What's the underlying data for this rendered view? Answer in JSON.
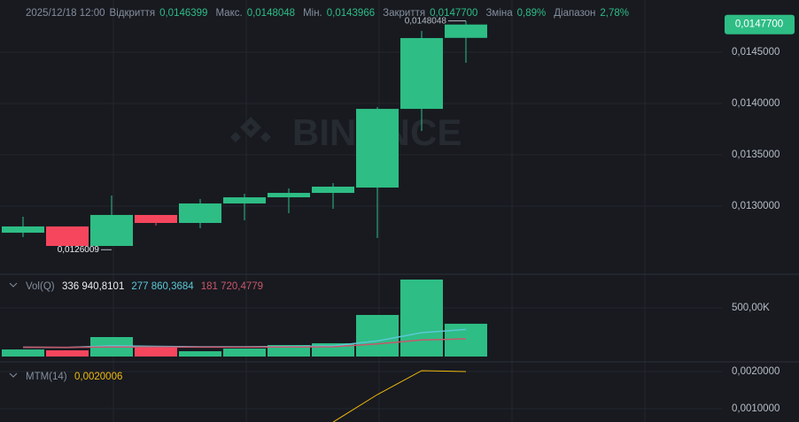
{
  "header": {
    "time": "2025/12/18 12:00",
    "fields": [
      {
        "label": "Відкриття",
        "value": "0,0146399"
      },
      {
        "label": "Макс.",
        "value": "0,0148048"
      },
      {
        "label": "Мін.",
        "value": "0,0143966"
      },
      {
        "label": "Закриття",
        "value": "0,0147700"
      },
      {
        "label": "Зміна",
        "value": "0,89%"
      },
      {
        "label": "Діапазон",
        "value": "2,78%"
      }
    ]
  },
  "watermark": "BINANCE",
  "chart_data": [
    {
      "type": "candlestick",
      "up_color": "#2ebd85",
      "down_color": "#f6465d",
      "open": [
        0.012741,
        0.012802,
        0.012612,
        0.012914,
        0.012836,
        0.013026,
        0.013086,
        0.013129,
        0.013181,
        0.013948,
        0.0146399
      ],
      "high": [
        0.012897,
        0.012802,
        0.013103,
        0.012914,
        0.013069,
        0.013121,
        0.013172,
        0.013224,
        0.013966,
        0.014707,
        0.0148048
      ],
      "low": [
        0.012698,
        0.0126009,
        0.012612,
        0.01281,
        0.012784,
        0.012862,
        0.012931,
        0.012974,
        0.01269,
        0.013733,
        0.0143966
      ],
      "close": [
        0.012802,
        0.012612,
        0.012914,
        0.012836,
        0.013026,
        0.013086,
        0.013129,
        0.01319,
        0.013948,
        0.014638,
        0.01477
      ],
      "ylim": [
        0.012336,
        0.015009
      ],
      "yticks": [
        {
          "value": 0.0145,
          "label": "0,0145000"
        },
        {
          "value": 0.014,
          "label": "0,0140000"
        },
        {
          "value": 0.0135,
          "label": "0,0135000"
        },
        {
          "value": 0.013,
          "label": "0,0130000"
        }
      ],
      "annotations": [
        {
          "label": "0,0148048",
          "value": 0.0148048
        },
        {
          "label": "0,0126009",
          "value": 0.0126009
        }
      ],
      "price_tag": {
        "label": "0,0147700",
        "value": 0.01477
      },
      "grid": true
    },
    {
      "type": "volume",
      "title": "Vol(Q)",
      "ylim": [
        0,
        845455
      ],
      "yticks": [
        {
          "value": 500000,
          "label": "500,00K"
        }
      ],
      "series": [
        {
          "kind": "bar",
          "values": [
            72727,
            63636,
            200000,
            100000,
            54545,
            81818,
            118182,
            136364,
            427273,
            790909,
            336940.8101
          ],
          "current_label": "336 940,8101",
          "color": "#eaecef"
        },
        {
          "kind": "line",
          "values": [
            95000,
            93000,
            110000,
            105000,
            100000,
            100000,
            103000,
            110000,
            160000,
            245000,
            277860.3684
          ],
          "current_label": "277 860,3684",
          "color": "#5bc8d6"
        },
        {
          "kind": "line",
          "values": [
            95000,
            94000,
            98000,
            98000,
            97000,
            97000,
            98000,
            100000,
            130000,
            170000,
            181720.4779
          ],
          "current_label": "181 720,4779",
          "color": "#c9576b"
        }
      ]
    },
    {
      "type": "line",
      "title": "MTM(14)",
      "ylim": [
        0.000643,
        0.002238
      ],
      "yticks": [
        {
          "value": 0.002,
          "label": "0,0020000"
        },
        {
          "value": 0.001,
          "label": "0,0010000"
        }
      ],
      "series": [
        {
          "values": [
            null,
            null,
            null,
            null,
            null,
            null,
            null,
            0.00064,
            0.001381,
            0.002024,
            0.0020006
          ],
          "current_label": "0,0020006",
          "color": "#f0b90b"
        }
      ]
    }
  ]
}
